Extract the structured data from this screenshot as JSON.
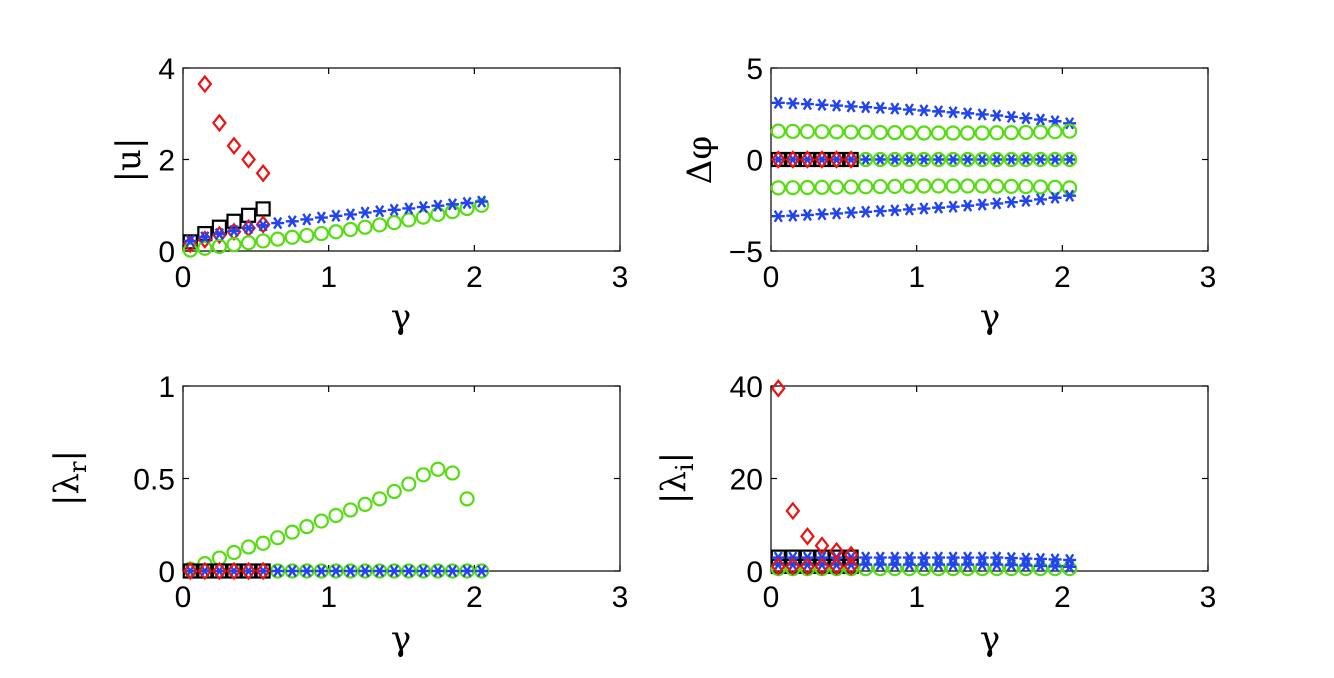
{
  "chart_data": [
    {
      "type": "scatter",
      "id": "absu",
      "ylabel": "|u|",
      "xlabel": "γ",
      "xlim": [
        0,
        3
      ],
      "ylim": [
        0,
        4
      ],
      "xticks": [
        "0",
        "1",
        "2",
        "3"
      ],
      "yticks": [
        "0",
        "2",
        "4"
      ],
      "xtick_values": [
        0,
        1,
        2,
        3
      ],
      "ytick_values": [
        0,
        2,
        4
      ],
      "series": [
        {
          "name": "black-squares",
          "marker": "square",
          "color": "#000000",
          "x": [
            0.05,
            0.15,
            0.25,
            0.35,
            0.45,
            0.55
          ],
          "y": [
            0.2,
            0.38,
            0.52,
            0.65,
            0.78,
            0.92
          ]
        },
        {
          "name": "red-diamonds",
          "marker": "diamond",
          "color": "#ee1111",
          "x": [
            0.05,
            0.15,
            0.25,
            0.35,
            0.45,
            0.55
          ],
          "y": [
            0.15,
            0.25,
            0.35,
            0.42,
            0.5,
            0.58
          ]
        },
        {
          "name": "red-diamonds-upper",
          "marker": "diamond",
          "color": "#ee1111",
          "x": [
            0.15,
            0.25,
            0.35,
            0.45,
            0.55
          ],
          "y": [
            3.65,
            2.8,
            2.3,
            2.0,
            1.7
          ]
        },
        {
          "name": "green-circles",
          "marker": "circle",
          "color": "#55dd11",
          "x": [
            0.05,
            0.15,
            0.25,
            0.35,
            0.45,
            0.55,
            0.65,
            0.75,
            0.85,
            0.95,
            1.05,
            1.15,
            1.25,
            1.35,
            1.45,
            1.55,
            1.65,
            1.75,
            1.85,
            1.95,
            2.05
          ],
          "y": [
            0.02,
            0.06,
            0.1,
            0.14,
            0.18,
            0.22,
            0.26,
            0.3,
            0.34,
            0.38,
            0.42,
            0.47,
            0.52,
            0.57,
            0.62,
            0.68,
            0.74,
            0.8,
            0.86,
            0.93,
            1.0
          ]
        },
        {
          "name": "blue-stars",
          "marker": "star",
          "color": "#2244ee",
          "x": [
            0.05,
            0.15,
            0.25,
            0.35,
            0.45,
            0.55,
            0.65,
            0.75,
            0.85,
            0.95,
            1.05,
            1.15,
            1.25,
            1.35,
            1.45,
            1.55,
            1.65,
            1.75,
            1.85,
            1.95,
            2.05
          ],
          "y": [
            0.22,
            0.3,
            0.37,
            0.44,
            0.5,
            0.56,
            0.61,
            0.65,
            0.69,
            0.73,
            0.77,
            0.8,
            0.84,
            0.87,
            0.9,
            0.93,
            0.96,
            0.99,
            1.02,
            1.05,
            1.08
          ]
        }
      ]
    },
    {
      "type": "scatter",
      "id": "dphi",
      "ylabel": "Δφ",
      "xlabel": "γ",
      "xlim": [
        0,
        3
      ],
      "ylim": [
        -5,
        5
      ],
      "xticks": [
        "0",
        "1",
        "2",
        "3"
      ],
      "yticks": [
        "−5",
        "0",
        "5"
      ],
      "xtick_values": [
        0,
        1,
        2,
        3
      ],
      "ytick_values": [
        -5,
        0,
        5
      ],
      "series": [
        {
          "name": "blue-stars-top",
          "marker": "star",
          "color": "#2244ee",
          "x": [
            0.05,
            0.15,
            0.25,
            0.35,
            0.45,
            0.55,
            0.65,
            0.75,
            0.85,
            0.95,
            1.05,
            1.15,
            1.25,
            1.35,
            1.45,
            1.55,
            1.65,
            1.75,
            1.85,
            1.95,
            2.05
          ],
          "y": [
            3.1,
            3.07,
            3.03,
            2.99,
            2.95,
            2.9,
            2.86,
            2.82,
            2.78,
            2.73,
            2.68,
            2.63,
            2.58,
            2.52,
            2.46,
            2.4,
            2.33,
            2.26,
            2.18,
            2.09,
            1.98
          ]
        },
        {
          "name": "green-circles-top",
          "marker": "circle",
          "color": "#55dd11",
          "x": [
            0.05,
            0.15,
            0.25,
            0.35,
            0.45,
            0.55,
            0.65,
            0.75,
            0.85,
            0.95,
            1.05,
            1.15,
            1.25,
            1.35,
            1.45,
            1.55,
            1.65,
            1.75,
            1.85,
            1.95,
            2.05
          ],
          "y": [
            1.55,
            1.54,
            1.53,
            1.52,
            1.51,
            1.5,
            1.49,
            1.48,
            1.47,
            1.46,
            1.45,
            1.45,
            1.45,
            1.45,
            1.45,
            1.46,
            1.47,
            1.48,
            1.5,
            1.52,
            1.55
          ]
        },
        {
          "name": "blue-stars-mid",
          "marker": "star",
          "color": "#2244ee",
          "x": [
            0.05,
            0.15,
            0.25,
            0.35,
            0.45,
            0.55,
            0.65,
            0.75,
            0.85,
            0.95,
            1.05,
            1.15,
            1.25,
            1.35,
            1.45,
            1.55,
            1.65,
            1.75,
            1.85,
            1.95,
            2.05
          ],
          "y": [
            0,
            0,
            0,
            0,
            0,
            0,
            0,
            0,
            0,
            0,
            0,
            0,
            0,
            0,
            0,
            0,
            0,
            0,
            0,
            0,
            0
          ]
        },
        {
          "name": "green-circles-mid",
          "marker": "circle",
          "color": "#55dd11",
          "x": [
            0.65,
            0.75,
            0.85,
            0.95,
            1.05,
            1.15,
            1.25,
            1.35,
            1.45,
            1.55,
            1.65,
            1.75,
            1.85,
            1.95,
            2.05
          ],
          "y": [
            0,
            0,
            0,
            0,
            0,
            0,
            0,
            0,
            0,
            0,
            0,
            0,
            0,
            0,
            0
          ]
        },
        {
          "name": "black-squares-mid",
          "marker": "square",
          "color": "#000000",
          "x": [
            0.05,
            0.15,
            0.25,
            0.35,
            0.45,
            0.55
          ],
          "y": [
            0,
            0,
            0,
            0,
            0,
            0
          ]
        },
        {
          "name": "red-diamonds-mid",
          "marker": "diamond",
          "color": "#ee1111",
          "x": [
            0.05,
            0.15,
            0.25,
            0.35,
            0.45,
            0.55
          ],
          "y": [
            0,
            0,
            0,
            0,
            0,
            0
          ]
        },
        {
          "name": "green-circles-bottom",
          "marker": "circle",
          "color": "#55dd11",
          "x": [
            0.05,
            0.15,
            0.25,
            0.35,
            0.45,
            0.55,
            0.65,
            0.75,
            0.85,
            0.95,
            1.05,
            1.15,
            1.25,
            1.35,
            1.45,
            1.55,
            1.65,
            1.75,
            1.85,
            1.95,
            2.05
          ],
          "y": [
            -1.55,
            -1.54,
            -1.53,
            -1.52,
            -1.51,
            -1.5,
            -1.49,
            -1.48,
            -1.47,
            -1.46,
            -1.45,
            -1.45,
            -1.45,
            -1.45,
            -1.45,
            -1.46,
            -1.47,
            -1.48,
            -1.5,
            -1.52,
            -1.55
          ]
        },
        {
          "name": "blue-stars-bottom",
          "marker": "star",
          "color": "#2244ee",
          "x": [
            0.05,
            0.15,
            0.25,
            0.35,
            0.45,
            0.55,
            0.65,
            0.75,
            0.85,
            0.95,
            1.05,
            1.15,
            1.25,
            1.35,
            1.45,
            1.55,
            1.65,
            1.75,
            1.85,
            1.95,
            2.05
          ],
          "y": [
            -3.1,
            -3.07,
            -3.03,
            -2.99,
            -2.95,
            -2.9,
            -2.86,
            -2.82,
            -2.78,
            -2.73,
            -2.68,
            -2.63,
            -2.58,
            -2.52,
            -2.46,
            -2.4,
            -2.33,
            -2.26,
            -2.18,
            -2.09,
            -1.98
          ]
        }
      ]
    },
    {
      "type": "scatter",
      "id": "lamr",
      "ylabel": "|λr|",
      "ylabel_main": "|λ",
      "ylabel_sub": "r",
      "ylabel_end": "|",
      "xlabel": "γ",
      "xlim": [
        0,
        3
      ],
      "ylim": [
        0,
        1
      ],
      "xticks": [
        "0",
        "1",
        "2",
        "3"
      ],
      "yticks": [
        "0",
        "0.5",
        "1"
      ],
      "xtick_values": [
        0,
        1,
        2,
        3
      ],
      "ytick_values": [
        0,
        0.5,
        1
      ],
      "series": [
        {
          "name": "green-circles",
          "marker": "circle",
          "color": "#55dd11",
          "x": [
            0.05,
            0.15,
            0.25,
            0.35,
            0.45,
            0.55,
            0.65,
            0.75,
            0.85,
            0.95,
            1.05,
            1.15,
            1.25,
            1.35,
            1.45,
            1.55,
            1.65,
            1.75,
            1.85,
            1.95
          ],
          "y": [
            0.01,
            0.04,
            0.07,
            0.1,
            0.13,
            0.15,
            0.18,
            0.21,
            0.24,
            0.27,
            0.3,
            0.33,
            0.36,
            0.39,
            0.43,
            0.47,
            0.52,
            0.55,
            0.53,
            0.39
          ]
        },
        {
          "name": "green-circles-zero",
          "marker": "circle",
          "color": "#55dd11",
          "x": [
            0.65,
            0.75,
            0.85,
            0.95,
            1.05,
            1.15,
            1.25,
            1.35,
            1.45,
            1.55,
            1.65,
            1.75,
            1.85,
            1.95,
            2.05
          ],
          "y": [
            0,
            0,
            0,
            0,
            0,
            0,
            0,
            0,
            0,
            0,
            0,
            0,
            0,
            0,
            0
          ]
        },
        {
          "name": "black-squares",
          "marker": "square",
          "color": "#000000",
          "x": [
            0.05,
            0.15,
            0.25,
            0.35,
            0.45,
            0.55
          ],
          "y": [
            0,
            0,
            0,
            0,
            0,
            0
          ]
        },
        {
          "name": "blue-stars",
          "marker": "star",
          "color": "#2244ee",
          "x": [
            0.05,
            0.15,
            0.25,
            0.35,
            0.45,
            0.55,
            0.65,
            0.75,
            0.85,
            0.95,
            1.05,
            1.15,
            1.25,
            1.35,
            1.45,
            1.55,
            1.65,
            1.75,
            1.85,
            1.95,
            2.05
          ],
          "y": [
            0,
            0,
            0,
            0,
            0,
            0,
            0,
            0,
            0,
            0,
            0,
            0,
            0,
            0,
            0,
            0,
            0,
            0,
            0,
            0,
            0
          ]
        },
        {
          "name": "red-diamonds",
          "marker": "diamond",
          "color": "#ee1111",
          "x": [
            0.05,
            0.15,
            0.25,
            0.35,
            0.45,
            0.55
          ],
          "y": [
            0,
            0,
            0,
            0,
            0,
            0
          ]
        }
      ]
    },
    {
      "type": "scatter",
      "id": "lami",
      "ylabel": "|λi|",
      "ylabel_main": "|λ",
      "ylabel_sub": "i",
      "ylabel_end": "|",
      "xlabel": "γ",
      "xlim": [
        0,
        3
      ],
      "ylim": [
        0,
        40
      ],
      "xticks": [
        "0",
        "1",
        "2",
        "3"
      ],
      "yticks": [
        "0",
        "20",
        "40"
      ],
      "xtick_values": [
        0,
        1,
        2,
        3
      ],
      "ytick_values": [
        0,
        20,
        40
      ],
      "series": [
        {
          "name": "black-squares",
          "marker": "square",
          "color": "#000000",
          "x": [
            0.05,
            0.05,
            0.15,
            0.15,
            0.25,
            0.25,
            0.35,
            0.35,
            0.45,
            0.45,
            0.55,
            0.55
          ],
          "y": [
            1,
            3,
            1,
            3,
            1,
            3,
            1,
            3,
            1,
            3,
            1,
            3
          ]
        },
        {
          "name": "green-circles",
          "marker": "circle",
          "color": "#55dd11",
          "x": [
            0.05,
            0.15,
            0.25,
            0.35,
            0.45,
            0.55,
            0.65,
            0.75,
            0.85,
            0.95,
            1.05,
            1.15,
            1.25,
            1.35,
            1.45,
            1.55,
            1.65,
            1.75,
            1.85,
            1.95,
            2.05
          ],
          "y": [
            0.5,
            0.5,
            0.5,
            0.5,
            0.5,
            0.5,
            0.5,
            0.5,
            0.5,
            0.5,
            0.5,
            0.5,
            0.5,
            0.5,
            0.5,
            0.5,
            0.5,
            0.5,
            0.5,
            0.5,
            0.5
          ]
        },
        {
          "name": "blue-stars-upper",
          "marker": "star",
          "color": "#2244ee",
          "x": [
            0.05,
            0.15,
            0.25,
            0.35,
            0.45,
            0.55,
            0.65,
            0.75,
            0.85,
            0.95,
            1.05,
            1.15,
            1.25,
            1.35,
            1.45,
            1.55,
            1.65,
            1.75,
            1.85,
            1.95,
            2.05
          ],
          "y": [
            2.9,
            2.9,
            2.9,
            2.9,
            2.9,
            2.9,
            2.9,
            2.9,
            2.9,
            2.9,
            2.9,
            2.9,
            2.9,
            2.9,
            2.9,
            2.9,
            2.8,
            2.7,
            2.6,
            2.5,
            2.4
          ]
        },
        {
          "name": "blue-stars-lower",
          "marker": "star",
          "color": "#2244ee",
          "x": [
            0.05,
            0.15,
            0.25,
            0.35,
            0.45,
            0.55,
            0.65,
            0.75,
            0.85,
            0.95,
            1.05,
            1.15,
            1.25,
            1.35,
            1.45,
            1.55,
            1.65,
            1.75,
            1.85,
            1.95,
            2.05
          ],
          "y": [
            1.4,
            1.4,
            1.4,
            1.4,
            1.4,
            1.4,
            1.4,
            1.4,
            1.4,
            1.4,
            1.4,
            1.4,
            1.4,
            1.4,
            1.4,
            1.4,
            1.3,
            1.2,
            1.1,
            1.0,
            0.9
          ]
        },
        {
          "name": "red-diamonds",
          "marker": "diamond",
          "color": "#ee1111",
          "x": [
            0.05,
            0.15,
            0.25,
            0.35,
            0.45,
            0.55,
            0.05,
            0.15,
            0.25,
            0.35,
            0.45,
            0.55
          ],
          "y": [
            39.5,
            13.0,
            7.5,
            5.5,
            4.3,
            3.5,
            1.0,
            1.0,
            1.0,
            1.0,
            1.0,
            1.0
          ]
        }
      ]
    }
  ]
}
